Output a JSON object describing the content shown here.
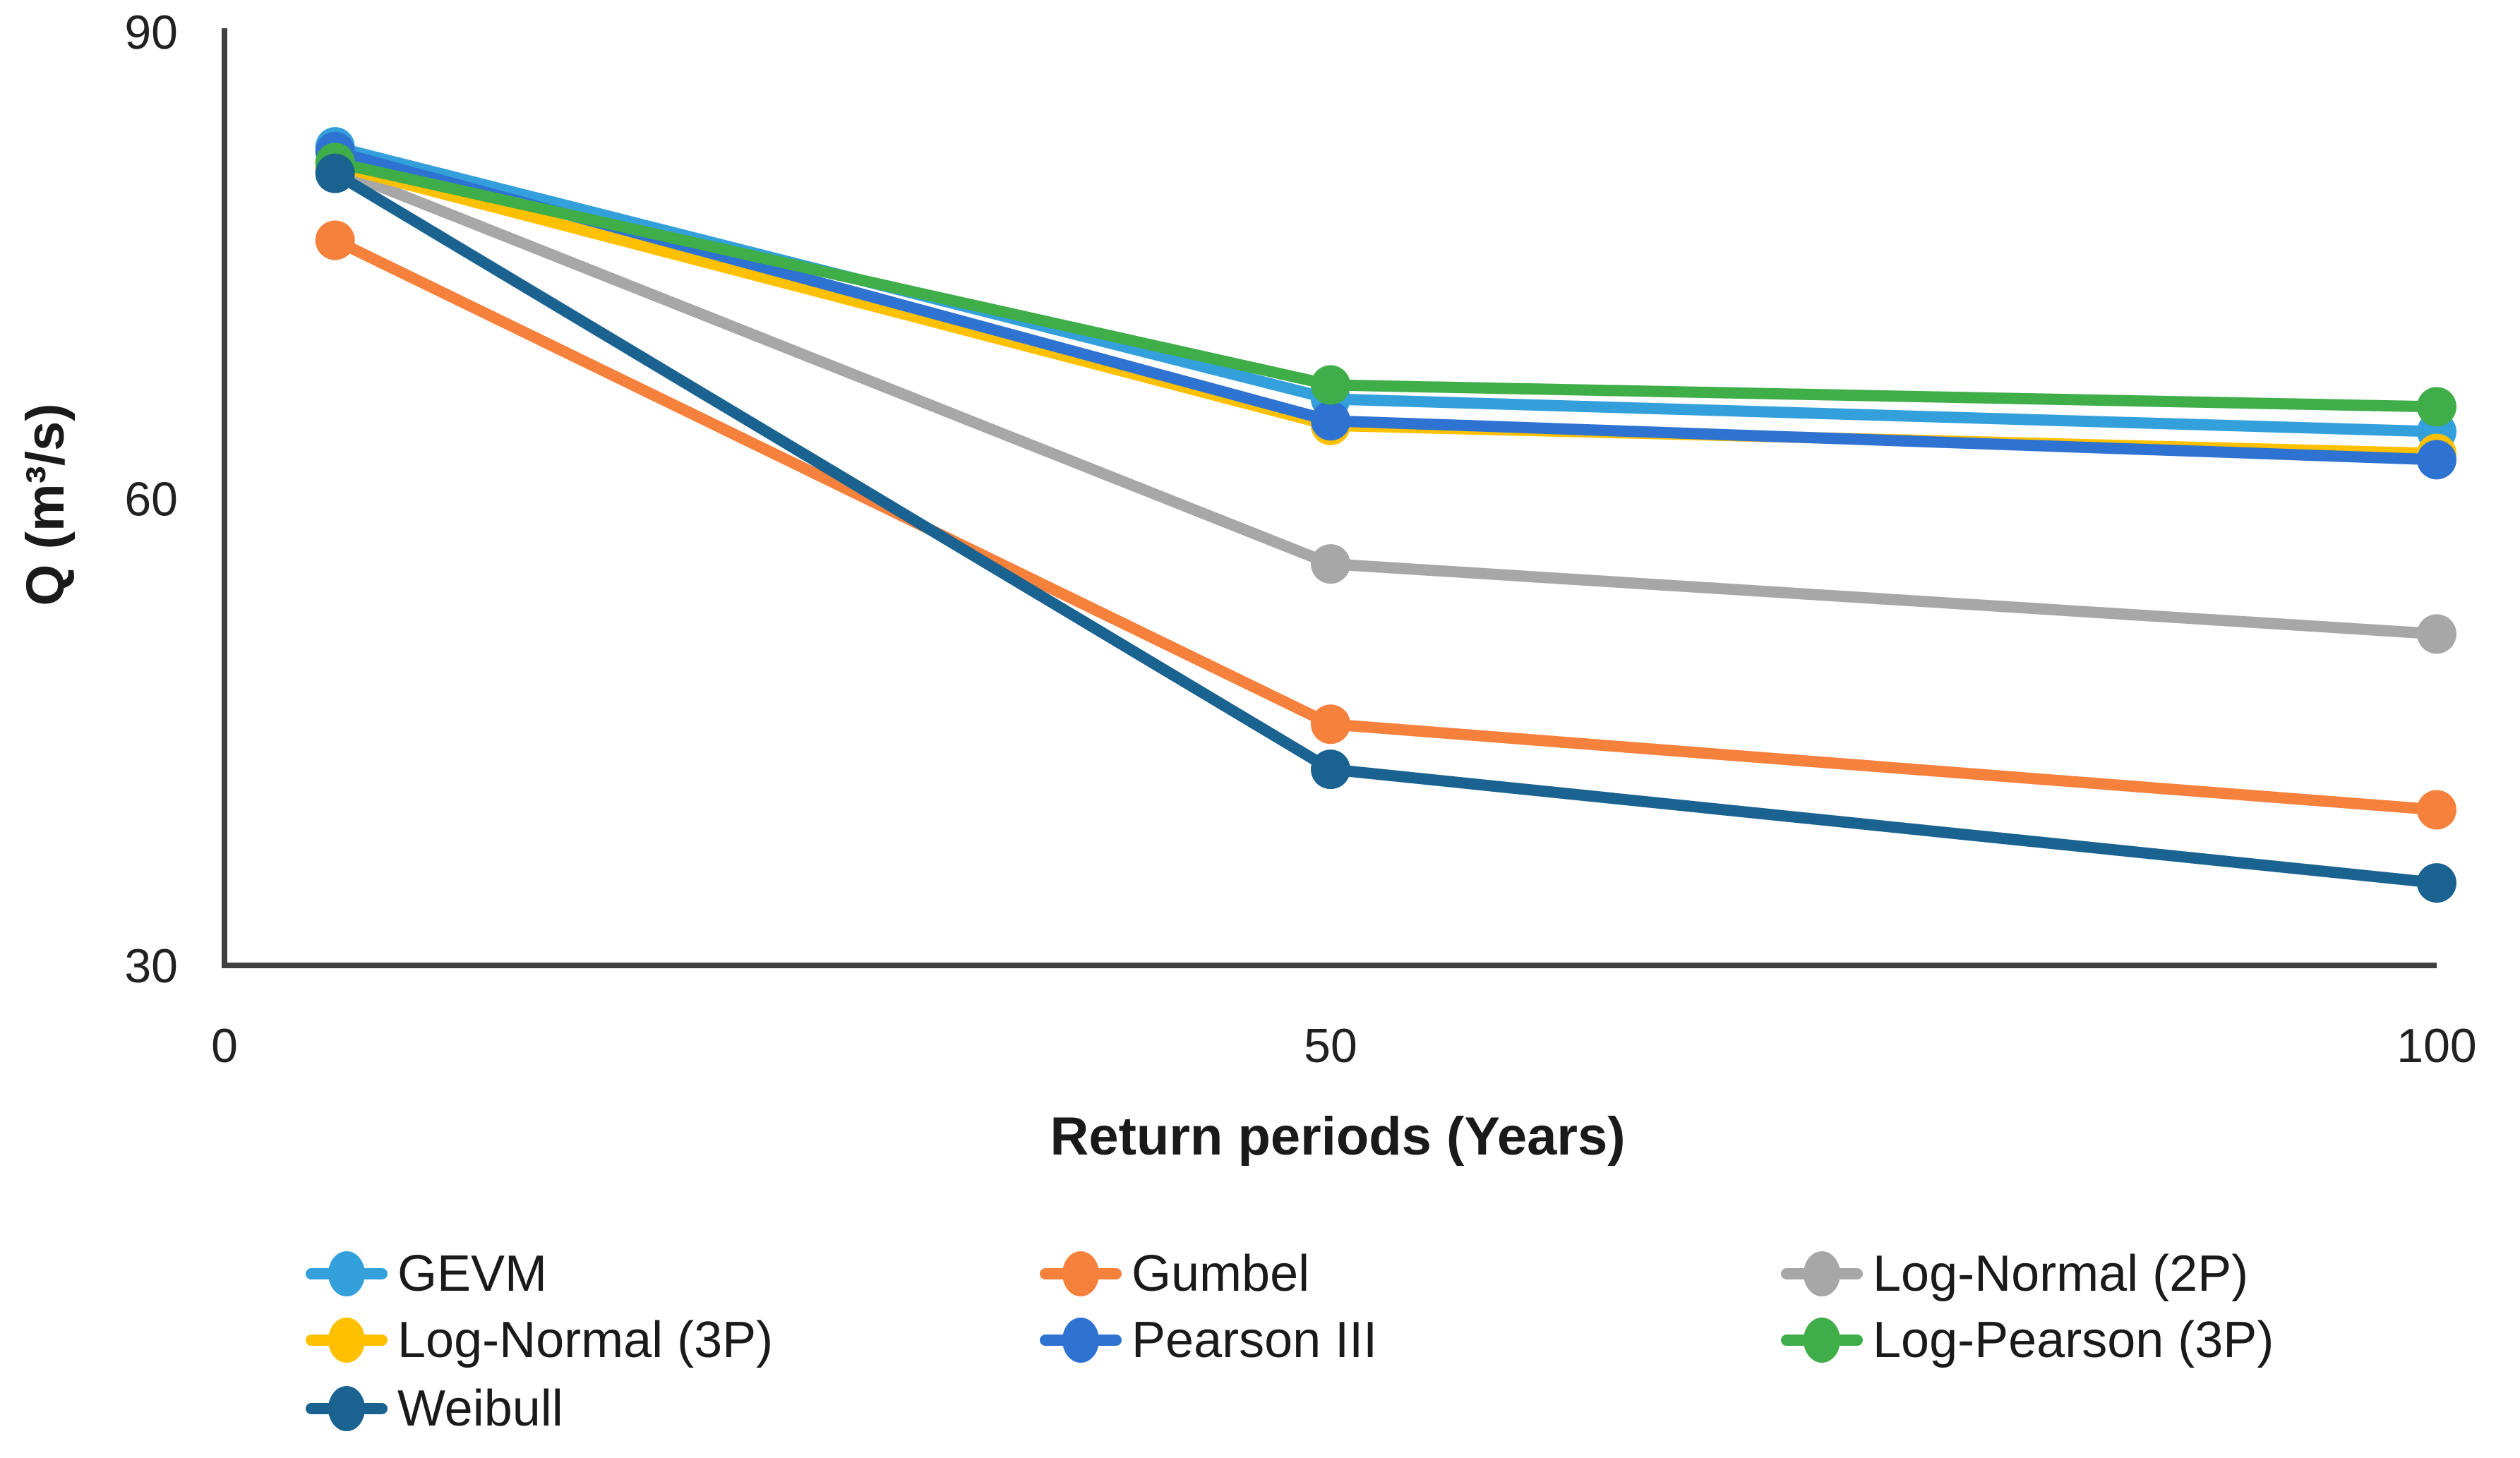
{
  "chart_data": {
    "type": "line",
    "xlabel": "Return periods (Years)",
    "ylabel": "Q (m³/s)",
    "x": [
      5,
      50,
      100
    ],
    "xlim": [
      0,
      100
    ],
    "ylim": [
      30,
      90
    ],
    "xticks": [
      0,
      50,
      100
    ],
    "yticks": [
      30,
      60,
      90
    ],
    "grid": false,
    "legend_position": "bottom",
    "marker": "circle",
    "series": [
      {
        "name": "GEVM",
        "color": "#33A0DC",
        "values": [
          82.6,
          66.4,
          64.3
        ]
      },
      {
        "name": "Gumbel",
        "color": "#F5813C",
        "values": [
          76.6,
          45.5,
          40.0
        ]
      },
      {
        "name": "Log-Normal (2P)",
        "color": "#A7A7A7",
        "values": [
          81.2,
          55.8,
          51.3
        ]
      },
      {
        "name": "Log-Normal (3P)",
        "color": "#FFC000",
        "values": [
          81.4,
          64.7,
          62.9
        ]
      },
      {
        "name": "Pearson III",
        "color": "#2E72D2",
        "values": [
          82.3,
          65.0,
          62.5
        ]
      },
      {
        "name": "Log-Pearson (3P)",
        "color": "#3FAE49",
        "values": [
          81.6,
          67.3,
          65.9
        ]
      },
      {
        "name": "Weibull",
        "color": "#1A6390",
        "values": [
          80.9,
          42.6,
          35.3
        ]
      }
    ],
    "legend_rows": [
      [
        "GEVM",
        "Gumbel",
        "Log-Normal (2P)"
      ],
      [
        "Log-Normal (3P)",
        "Pearson III",
        "Log-Pearson (3P)"
      ],
      [
        "Weibull"
      ]
    ],
    "axis_color": "#3f3f3f",
    "text_color": "#212121"
  }
}
